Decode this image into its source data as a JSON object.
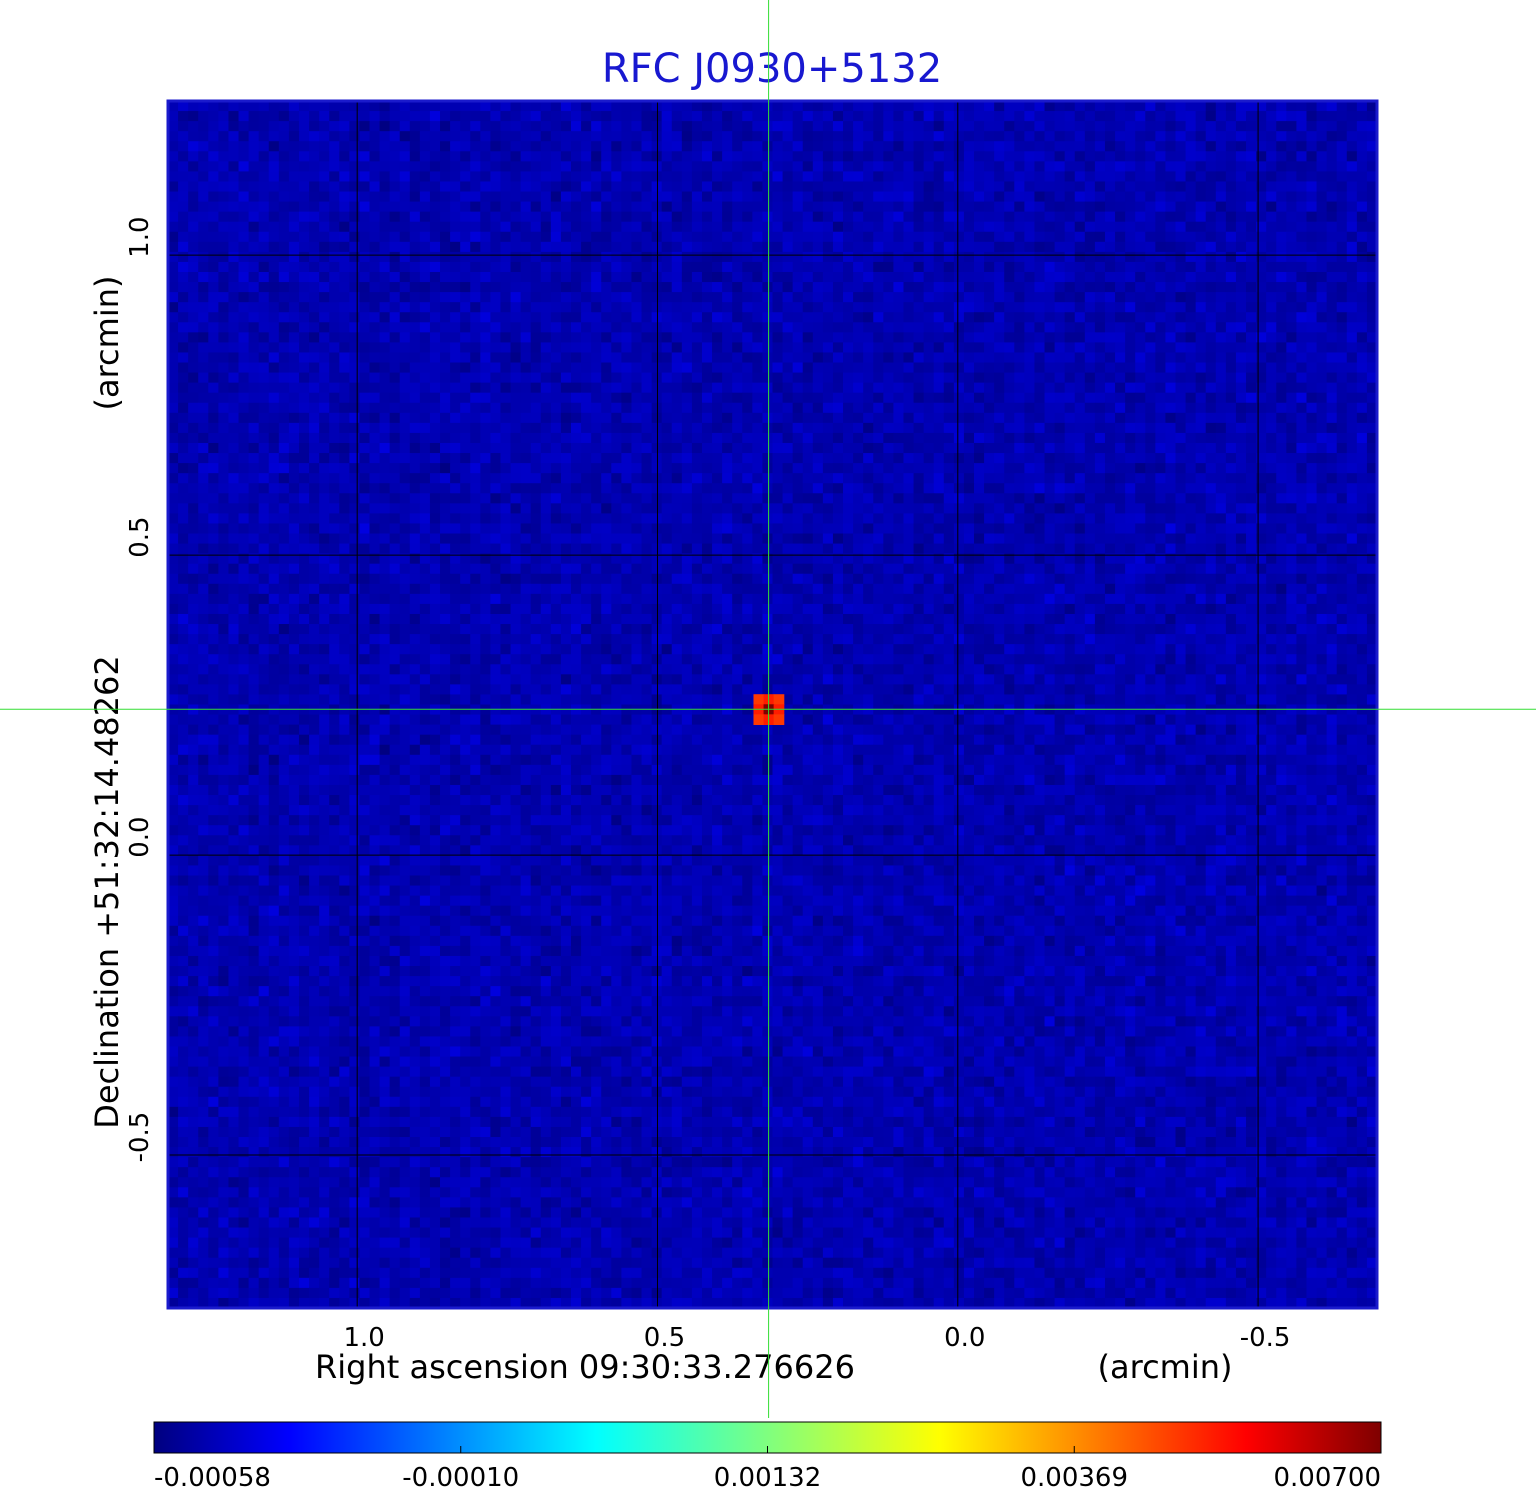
{
  "chart_data": {
    "type": "heatmap",
    "title": "RFC J0930+5132",
    "xlabel": "Right ascension  09:30:33.276626",
    "xunit": "(arcmin)",
    "ylabel": "Declination  +51:32:14.48262",
    "yunit": "(arcmin)",
    "x_ticks": [
      1.0,
      0.5,
      0.0,
      -0.5
    ],
    "x_tick_labels": [
      "1.0",
      "0.5",
      "0.0",
      "-0.5"
    ],
    "y_ticks": [
      1.0,
      0.5,
      0.0,
      -0.5
    ],
    "y_tick_labels": [
      "1.0",
      "0.5",
      "0.0",
      "-0.5"
    ],
    "xlim": [
      1.315,
      -0.698
    ],
    "ylim": [
      -0.755,
      1.257
    ],
    "grid": true,
    "crosshair": {
      "x": 0.315,
      "y": 0.243
    },
    "source_peak": {
      "x": 0.315,
      "y": 0.243,
      "value": 0.007
    },
    "colorbar": {
      "colormap": "jet",
      "range": [
        -0.00058,
        0.007
      ],
      "ticks": [
        -0.00058,
        -0.0001,
        0.00132,
        0.00369,
        0.007
      ],
      "tick_labels": [
        "-0.00058",
        "-0.00010",
        "0.00132",
        "0.00369",
        "0.00700"
      ]
    },
    "background_noise_range": [
      -0.00058,
      0.00015
    ]
  },
  "colors": {
    "title": "#1818d0",
    "frame": "#1a1acc",
    "grid": "#000000",
    "crosshair": "#33dd33"
  }
}
